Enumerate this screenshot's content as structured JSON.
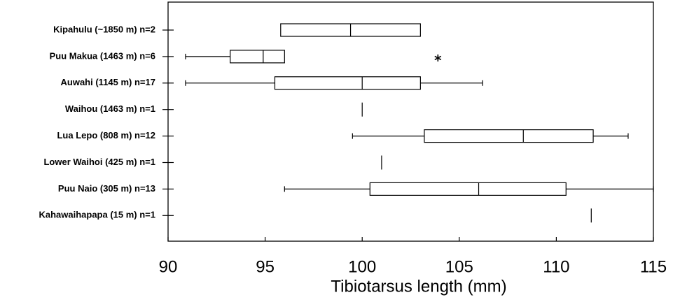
{
  "chart_data": {
    "type": "boxplot",
    "orientation": "horizontal",
    "x_label": "Tibiotarsus length (mm)",
    "categories": [
      "Kipahulu (~1850 m) n=2",
      "Puu Makua (1463 m) n=6",
      "Auwahi (1145 m) n=17",
      "Waihou (1463 m) n=1",
      "Lua Lepo (808 m) n=12",
      "Lower Waihoi (425 m) n=1",
      "Puu Naio (305 m)  n=13",
      "Kahawaihapapa (15 m) n=1"
    ],
    "boxes": [
      {
        "q1": 95.8,
        "median": 99.4,
        "q3": 103.0
      },
      {
        "min": 90.9,
        "q1": 93.2,
        "median": 94.9,
        "q3": 96.0,
        "outliers": [
          103.9
        ]
      },
      {
        "min": 90.9,
        "q1": 95.5,
        "median": 100.0,
        "q3": 103.0,
        "max": 106.2
      },
      {
        "value": 100.0
      },
      {
        "min": 99.5,
        "q1": 103.2,
        "median": 108.3,
        "q3": 111.9,
        "max": 113.7
      },
      {
        "value": 101.0
      },
      {
        "min": 96.0,
        "q1": 100.4,
        "median": 106.0,
        "q3": 110.5,
        "max": 115.0
      },
      {
        "value": 111.8
      }
    ],
    "xlim": [
      90,
      115
    ],
    "xticks": [
      90,
      95,
      100,
      105,
      110,
      115
    ]
  }
}
